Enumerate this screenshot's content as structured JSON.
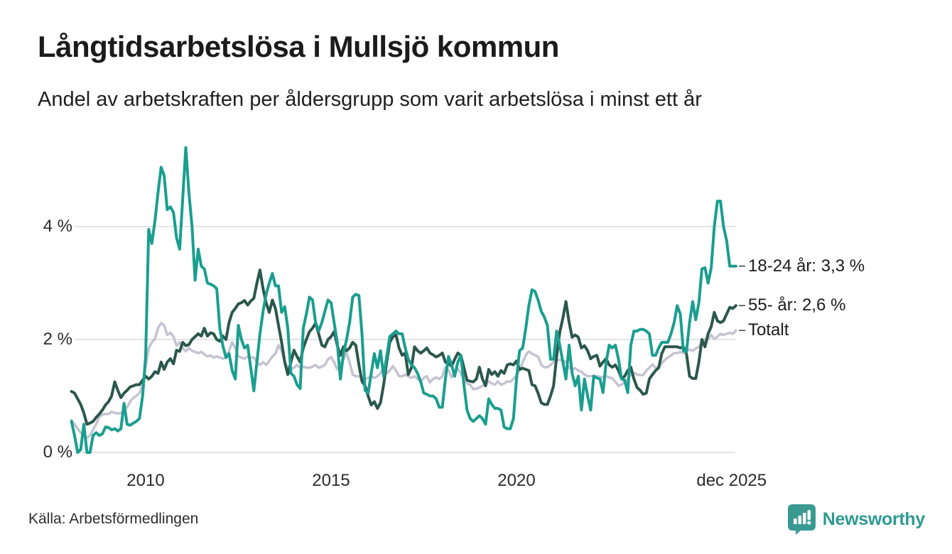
{
  "header": {
    "title": "Långtidsarbetslösa i Mullsjö kommun",
    "subtitle": "Andel av arbetskraften per åldersgrupp som varit arbetslösa i minst ett år"
  },
  "footer": {
    "source": "Källa: Arbetsförmedlingen",
    "brand": "Newsworthy",
    "brand_color": "#2e9a93"
  },
  "chart_data": {
    "type": "line",
    "title": "Långtidsarbetslösa i Mullsjö kommun",
    "subtitle": "Andel av arbetskraften per åldersgrupp som varit arbetslösa i minst ett år",
    "unit": "% av arbetskraften",
    "x_start_year": 2008,
    "points_per_year": 12,
    "ylim": [
      0,
      5.6
    ],
    "grid": "horizontal",
    "legend_position": "right-edge-annotations",
    "y_ticks": [
      {
        "label": "0 %",
        "value": 0
      },
      {
        "label": "2 %",
        "value": 2
      },
      {
        "label": "4 %",
        "value": 4
      }
    ],
    "x_ticks": [
      {
        "label": "2010",
        "year": 2010
      },
      {
        "label": "2015",
        "year": 2015
      },
      {
        "label": "2020",
        "year": 2020
      },
      {
        "label": "dec 2025",
        "year": 2025.8
      }
    ],
    "series": [
      {
        "name": "18-24 år",
        "annotation": "18-24 år: 3,3 %",
        "last_value_label": "3,3 %",
        "color": "#1a9e8f",
        "width": 4,
        "values": [
          0.55,
          0.3,
          0,
          0.05,
          0.5,
          0,
          0,
          0.3,
          0.35,
          0.3,
          0.33,
          0.45,
          0.44,
          0.4,
          0.42,
          0.38,
          0.42,
          0.87,
          0.5,
          0.48,
          0.52,
          0.55,
          0.6,
          1.0,
          1.7,
          3.95,
          3.7,
          4.1,
          4.6,
          5.05,
          4.9,
          4.3,
          4.35,
          4.25,
          3.8,
          3.6,
          4.5,
          5.4,
          4.6,
          4.0,
          3.05,
          3.6,
          3.3,
          3.25,
          3.0,
          2.98,
          2.95,
          2.9,
          2.2,
          1.89,
          1.68,
          1.75,
          1.45,
          1.3,
          2.25,
          2.0,
          1.85,
          1.9,
          1.5,
          1.09,
          1.6,
          2.1,
          2.5,
          2.8,
          3.0,
          3.17,
          2.95,
          2.95,
          2.48,
          2.58,
          2.2,
          1.4,
          1.35,
          1.2,
          1.13,
          2.2,
          2.45,
          2.75,
          2.7,
          2.3,
          2.15,
          2.3,
          2.5,
          2.7,
          2.65,
          2.3,
          1.95,
          1.3,
          1.75,
          2.0,
          2.3,
          2.75,
          2.8,
          2.78,
          2.1,
          1.1,
          1.05,
          1.4,
          1.75,
          1.5,
          1.8,
          1.35,
          1.7,
          2.05,
          2.1,
          2.15,
          2.1,
          2.1,
          1.85,
          1.65,
          1.55,
          1.5,
          1.4,
          1.25,
          1.05,
          1.03,
          1.0,
          1.0,
          0.95,
          0.8,
          0.8,
          1.3,
          1.7,
          1.55,
          1.35,
          1.6,
          1.72,
          1.2,
          0.75,
          0.6,
          0.55,
          0.6,
          0.65,
          0.6,
          0.5,
          0.95,
          0.85,
          0.78,
          0.78,
          0.75,
          0.45,
          0.42,
          0.42,
          0.6,
          1.3,
          1.8,
          1.85,
          2.2,
          2.6,
          2.88,
          2.85,
          2.7,
          2.5,
          2.4,
          2.25,
          1.65,
          1.65,
          2.15,
          1.9,
          1.6,
          1.3,
          1.9,
          1.4,
          1.18,
          1.35,
          0.75,
          1.3,
          1.0,
          0.75,
          1.35,
          1.32,
          1.3,
          1.06,
          1.6,
          1.9,
          1.85,
          1.9,
          1.65,
          1.3,
          1.28,
          1.06,
          1.9,
          2.15,
          2.15,
          2.18,
          2.18,
          2.15,
          2.1,
          1.72,
          1.72,
          1.85,
          1.95,
          1.95,
          1.95,
          2.1,
          2.3,
          2.6,
          2.45,
          1.8,
          1.78,
          2.3,
          2.67,
          2.35,
          2.65,
          3.25,
          3.27,
          3.0,
          3.27,
          4.0,
          4.45,
          4.45,
          4.0,
          3.75,
          3.3,
          3.3,
          3.3
        ]
      },
      {
        "name": "55- år",
        "annotation": "55- år: 2,6 %",
        "last_value_label": "2,6 %",
        "color": "#2b574c",
        "width": 4,
        "values": [
          1.08,
          1.05,
          0.95,
          0.85,
          0.7,
          0.5,
          0.52,
          0.55,
          0.62,
          0.68,
          0.75,
          0.84,
          0.9,
          1.0,
          1.25,
          1.1,
          0.97,
          1.05,
          1.1,
          1.16,
          1.18,
          1.2,
          1.2,
          1.28,
          1.35,
          1.3,
          1.35,
          1.43,
          1.4,
          1.6,
          1.47,
          1.6,
          1.66,
          1.57,
          1.81,
          1.79,
          1.95,
          1.89,
          1.91,
          2.0,
          2.05,
          2.1,
          2.06,
          2.2,
          2.06,
          2.12,
          2.1,
          2.0,
          1.97,
          2.06,
          2.0,
          2.3,
          2.48,
          2.55,
          2.63,
          2.65,
          2.69,
          2.61,
          2.68,
          2.73,
          3.0,
          3.23,
          2.9,
          2.65,
          2.48,
          2.7,
          2.55,
          2.25,
          1.95,
          1.6,
          1.38,
          1.6,
          1.81,
          1.7,
          1.6,
          1.85,
          2.0,
          2.14,
          2.2,
          2.29,
          2.1,
          1.9,
          1.87,
          2.0,
          2.05,
          2.14,
          1.9,
          1.72,
          1.87,
          1.8,
          1.85,
          1.95,
          1.9,
          1.55,
          1.26,
          1.18,
          1.0,
          0.84,
          0.9,
          0.78,
          0.88,
          1.2,
          1.6,
          1.95,
          2.05,
          2.08,
          1.85,
          1.72,
          1.76,
          1.38,
          1.5,
          1.87,
          1.8,
          1.76,
          1.8,
          1.85,
          1.76,
          1.73,
          1.69,
          1.72,
          1.76,
          1.6,
          1.57,
          1.53,
          1.65,
          1.76,
          1.72,
          1.5,
          1.28,
          1.26,
          1.25,
          1.3,
          1.51,
          1.3,
          1.18,
          1.47,
          1.38,
          1.43,
          1.35,
          1.45,
          1.4,
          1.55,
          1.57,
          1.55,
          1.62,
          1.47,
          1.49,
          1.47,
          1.45,
          1.2,
          1.18,
          1.05,
          0.88,
          0.85,
          0.85,
          1.0,
          1.18,
          1.7,
          2.13,
          2.38,
          2.67,
          2.31,
          2.04,
          2.08,
          2.04,
          1.85,
          1.89,
          1.8,
          1.66,
          1.7,
          1.72,
          1.53,
          1.6,
          1.66,
          1.55,
          1.51,
          1.55,
          1.45,
          1.31,
          1.35,
          1.45,
          1.51,
          1.3,
          1.15,
          1.1,
          1.03,
          1.05,
          1.3,
          1.38,
          1.45,
          1.5,
          1.75,
          1.87,
          1.87,
          1.87,
          1.87,
          1.87,
          1.85,
          1.87,
          1.75,
          1.35,
          1.31,
          1.31,
          1.6,
          2.0,
          1.87,
          2.1,
          2.23,
          2.48,
          2.33,
          2.3,
          2.33,
          2.45,
          2.57,
          2.55,
          2.6
        ]
      },
      {
        "name": "Totalt",
        "annotation": "Totalt",
        "last_value_label": "2,2 %",
        "color": "#c5c3d1",
        "width": 3.5,
        "values": [
          0.57,
          0.5,
          0.42,
          0.35,
          0.3,
          0.26,
          0.3,
          0.4,
          0.5,
          0.63,
          0.67,
          0.68,
          0.68,
          0.72,
          0.7,
          0.69,
          0.7,
          0.75,
          0.8,
          0.9,
          0.97,
          1.0,
          1.05,
          1.2,
          1.51,
          1.85,
          1.95,
          2.01,
          2.2,
          2.29,
          2.25,
          2.08,
          2.12,
          2.05,
          1.89,
          1.95,
          1.85,
          1.79,
          1.85,
          1.8,
          1.78,
          1.76,
          1.78,
          1.74,
          1.7,
          1.72,
          1.68,
          1.7,
          1.68,
          1.66,
          1.68,
          1.8,
          1.95,
          1.85,
          1.7,
          1.68,
          1.66,
          1.7,
          1.68,
          1.68,
          1.6,
          1.55,
          1.6,
          1.55,
          1.62,
          1.7,
          1.75,
          1.9,
          1.8,
          1.6,
          1.5,
          1.48,
          1.5,
          1.55,
          1.5,
          1.52,
          1.5,
          1.5,
          1.52,
          1.55,
          1.5,
          1.52,
          1.55,
          1.65,
          1.69,
          1.6,
          1.47,
          1.55,
          1.65,
          1.76,
          1.6,
          1.38,
          1.35,
          1.35,
          1.32,
          1.3,
          1.32,
          1.35,
          1.32,
          1.35,
          1.4,
          1.5,
          1.4,
          1.45,
          1.53,
          1.45,
          1.35,
          1.35,
          1.38,
          1.35,
          1.32,
          1.35,
          1.3,
          1.26,
          1.32,
          1.35,
          1.24,
          1.3,
          1.33,
          1.3,
          1.35,
          1.51,
          1.45,
          1.33,
          1.42,
          1.48,
          1.4,
          1.3,
          1.22,
          1.2,
          1.12,
          1.13,
          1.15,
          1.18,
          1.2,
          1.26,
          1.22,
          1.2,
          1.26,
          1.2,
          1.22,
          1.26,
          1.25,
          1.3,
          1.37,
          1.45,
          1.6,
          1.72,
          1.79,
          1.75,
          1.72,
          1.7,
          1.55,
          1.51,
          1.51,
          1.55,
          1.6,
          1.63,
          1.64,
          1.63,
          1.6,
          1.5,
          1.47,
          1.49,
          1.45,
          1.43,
          1.38,
          1.35,
          1.35,
          1.36,
          1.35,
          1.34,
          1.33,
          1.35,
          1.33,
          1.31,
          1.25,
          1.18,
          1.2,
          1.25,
          1.3,
          1.38,
          1.41,
          1.38,
          1.37,
          1.37,
          1.45,
          1.5,
          1.56,
          1.5,
          1.5,
          1.58,
          1.64,
          1.68,
          1.72,
          1.76,
          1.76,
          1.78,
          1.76,
          1.8,
          1.82,
          1.8,
          1.84,
          1.87,
          1.95,
          2.01,
          2.0,
          2.08,
          2.01,
          2.05,
          2.1,
          2.08,
          2.1,
          2.12,
          2.1,
          2.16
        ]
      }
    ]
  }
}
